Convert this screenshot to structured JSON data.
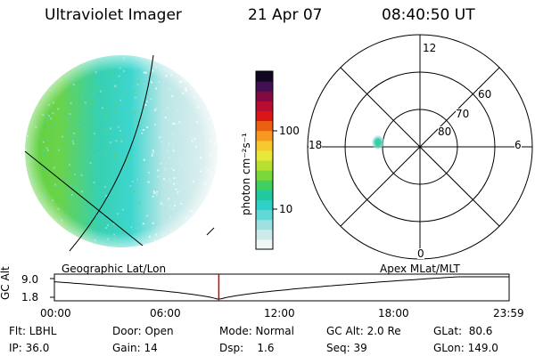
{
  "header": {
    "instrument": "Ultraviolet Imager",
    "date": "21 Apr 07",
    "time": "08:40:50 UT"
  },
  "colorbar": {
    "unit_label": "photon cm⁻²s⁻¹",
    "ticks": [
      "100",
      "10"
    ],
    "colors": [
      "#eef6f6",
      "#cfeaea",
      "#9fe1e0",
      "#5fd8d6",
      "#2fd0c8",
      "#22c8a0",
      "#3fd060",
      "#7cd83a",
      "#b8e030",
      "#e8e83a",
      "#f8c830",
      "#f89820",
      "#e86010",
      "#d81818",
      "#b80c30",
      "#800a40",
      "#401050",
      "#100820"
    ]
  },
  "globe": {
    "projection_label": "Geographic Lat/Lon"
  },
  "polar": {
    "projection_label": "Apex  MLat/MLT",
    "mlt_labels": [
      "12",
      "18",
      "6",
      "0"
    ],
    "lat_labels": [
      "60",
      "70",
      "80"
    ]
  },
  "altitude_plot": {
    "ylabel": "GC Alt",
    "yticks": [
      "9.0",
      "1.8"
    ],
    "xticks": [
      "00:00",
      "06:00",
      "12:00",
      "18:00",
      "23:59"
    ],
    "current_time_marker_hours": 8.68,
    "marker_color": "#d00000"
  },
  "status": {
    "filter": "Flt: LBHL",
    "ip": "IP: 36.0",
    "door": "Door: Open",
    "gain": "Gain: 14",
    "mode": "Mode: Normal",
    "dsp": "Dsp:    1.6",
    "gc_alt": "GC Alt: 2.0 Re",
    "seq": "Seq: 39",
    "glat": "GLat:  80.6",
    "glon": "GLon: 149.0"
  }
}
